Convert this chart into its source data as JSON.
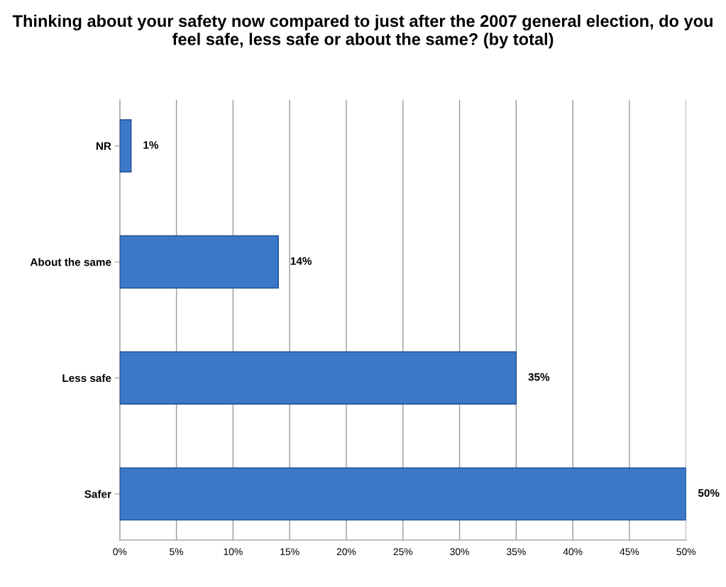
{
  "chart_data": {
    "type": "bar",
    "orientation": "horizontal",
    "title": "Thinking about your safety now compared to just after the 2007 general election, do you feel safe, less safe or about the same? (by total)",
    "categories": [
      "NR",
      "About the same",
      "Less safe",
      "Safer"
    ],
    "values": [
      1,
      14,
      35,
      50
    ],
    "value_labels": [
      "1%",
      "14%",
      "35%",
      "50%"
    ],
    "color": "#3a78c9",
    "xlim": [
      0,
      50
    ],
    "xticks": [
      {
        "value": 0,
        "label": "0%"
      },
      {
        "value": 5,
        "label": "5%"
      },
      {
        "value": 10,
        "label": "10%"
      },
      {
        "value": 15,
        "label": "15%"
      },
      {
        "value": 20,
        "label": "20%"
      },
      {
        "value": 25,
        "label": "25%"
      },
      {
        "value": 30,
        "label": "30%"
      },
      {
        "value": 35,
        "label": "35%"
      },
      {
        "value": 40,
        "label": "40%"
      },
      {
        "value": 45,
        "label": "45%"
      },
      {
        "value": 50,
        "label": "50%"
      }
    ],
    "grid": "x",
    "legend": false
  }
}
